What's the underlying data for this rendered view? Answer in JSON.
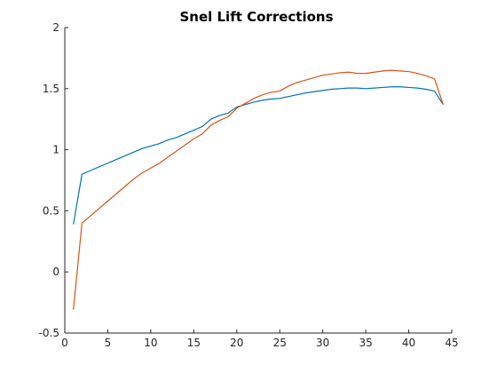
{
  "chart_data": {
    "type": "line",
    "title": "Snel Lift Corrections",
    "xlabel": "",
    "ylabel": "",
    "xlim": [
      0,
      45
    ],
    "ylim": [
      -0.5,
      2
    ],
    "xticks": [
      0,
      5,
      10,
      15,
      20,
      25,
      30,
      35,
      40,
      45
    ],
    "yticks": [
      -0.5,
      0,
      0.5,
      1,
      1.5,
      2
    ],
    "ytick_labels": [
      "-0.5",
      "0",
      "0.5",
      "1",
      "1.5",
      "2"
    ],
    "grid": false,
    "legend": "none",
    "series": [
      {
        "color": "#0072BD",
        "x": [
          1,
          2,
          3,
          4,
          5,
          6,
          7,
          8,
          9,
          10,
          11,
          12,
          13,
          14,
          15,
          16,
          17,
          18,
          19,
          20,
          21,
          22,
          23,
          24,
          25,
          26,
          27,
          28,
          29,
          30,
          31,
          32,
          33,
          34,
          35,
          36,
          37,
          38,
          39,
          40,
          41,
          42,
          43,
          44
        ],
        "y": [
          0.39,
          0.8,
          0.83,
          0.86,
          0.89,
          0.92,
          0.95,
          0.98,
          1.01,
          1.03,
          1.05,
          1.08,
          1.1,
          1.13,
          1.16,
          1.19,
          1.25,
          1.28,
          1.3,
          1.35,
          1.37,
          1.39,
          1.405,
          1.415,
          1.42,
          1.435,
          1.45,
          1.465,
          1.475,
          1.485,
          1.495,
          1.5,
          1.505,
          1.505,
          1.5,
          1.505,
          1.51,
          1.515,
          1.515,
          1.51,
          1.505,
          1.495,
          1.48,
          1.37
        ]
      },
      {
        "color": "#D95319",
        "x": [
          1,
          2,
          3,
          4,
          5,
          6,
          7,
          8,
          9,
          10,
          11,
          12,
          13,
          14,
          15,
          16,
          17,
          18,
          19,
          20,
          21,
          22,
          23,
          24,
          25,
          26,
          27,
          28,
          29,
          30,
          31,
          32,
          33,
          34,
          35,
          36,
          37,
          38,
          39,
          40,
          41,
          42,
          43,
          44
        ],
        "y": [
          -0.31,
          0.4,
          0.46,
          0.52,
          0.58,
          0.64,
          0.7,
          0.76,
          0.81,
          0.85,
          0.89,
          0.94,
          0.99,
          1.04,
          1.09,
          1.13,
          1.2,
          1.24,
          1.27,
          1.34,
          1.38,
          1.42,
          1.45,
          1.47,
          1.48,
          1.52,
          1.55,
          1.57,
          1.59,
          1.61,
          1.62,
          1.63,
          1.635,
          1.625,
          1.625,
          1.635,
          1.645,
          1.65,
          1.645,
          1.64,
          1.625,
          1.605,
          1.58,
          1.37
        ]
      }
    ]
  }
}
